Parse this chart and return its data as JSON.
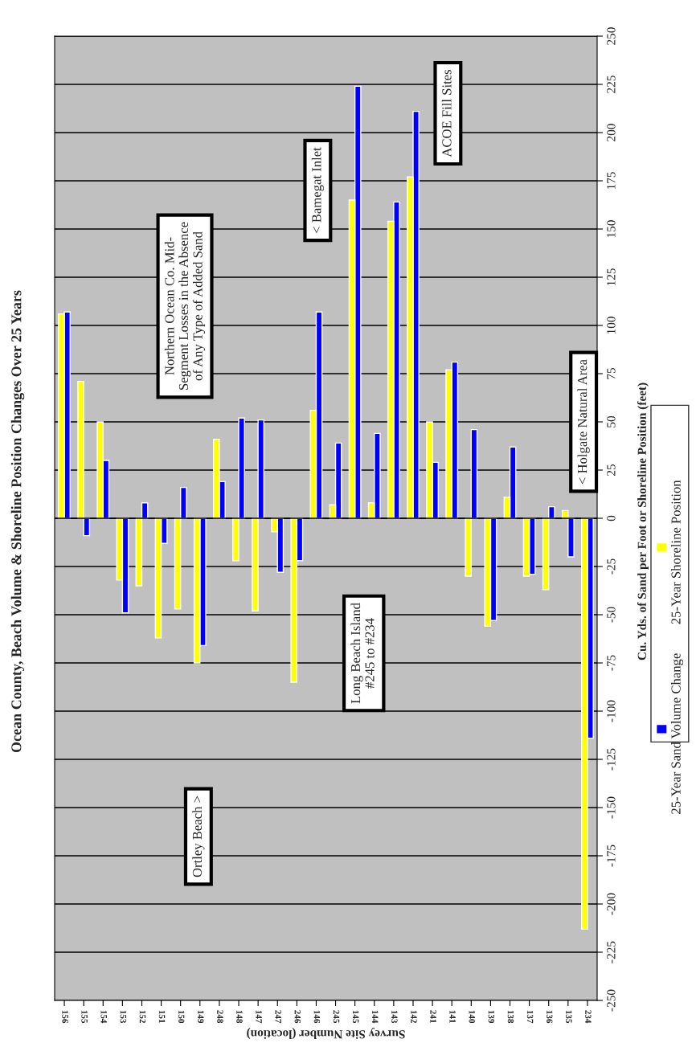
{
  "chart_data": {
    "type": "bar",
    "title": "Ocean County, Beach Volume & Shoreline Position Changes Over 25 Years",
    "xlabel": "Survey Site Number (location)",
    "ylabel": "Cu. Yds. of Sand per Foot or Shoreline Position (feet)",
    "categories": [
      "156",
      "155",
      "154",
      "153",
      "152",
      "151",
      "150",
      "149",
      "248",
      "148",
      "147",
      "247",
      "246",
      "146",
      "245",
      "145",
      "144",
      "143",
      "142",
      "241",
      "141",
      "140",
      "139",
      "138",
      "137",
      "136",
      "135",
      "234"
    ],
    "series": [
      {
        "name": "25-Year Sand Volume Change",
        "color": "#0000ff",
        "values": [
          107,
          -9,
          30,
          -49,
          8,
          -13,
          16,
          -66,
          19,
          52,
          51,
          -28,
          -22,
          107,
          39,
          224,
          44,
          164,
          211,
          29,
          81,
          46,
          -53,
          37,
          -29,
          6,
          -20,
          -114
        ]
      },
      {
        "name": "25-Year Shoreline Position",
        "color": "#ffff00",
        "values": [
          106,
          71,
          50,
          -32,
          -35,
          -62,
          -47,
          -75,
          41,
          -22,
          -48,
          -7,
          -85,
          56,
          7,
          165,
          8,
          154,
          177,
          50,
          77,
          -30,
          -56,
          11,
          -30,
          -37,
          4,
          -213
        ]
      }
    ],
    "ylim": [
      -250,
      250
    ],
    "yticks": [
      -250,
      -225,
      -200,
      -175,
      -150,
      -125,
      -100,
      -75,
      -50,
      -25,
      0,
      25,
      50,
      75,
      100,
      125,
      150,
      175,
      200,
      225,
      250
    ],
    "grid": "y",
    "legend": "right",
    "annotations": [
      "Northern Ocean Co. Mid-\nSegment Losses in the Absence\nof Any Type of Added Sand",
      "< Bamegat Inlet",
      "ACOE Fill Sites",
      "< Holgate Natural Area",
      "Ortley Beach >",
      "Long Beach Island\n#245 to #234"
    ]
  }
}
